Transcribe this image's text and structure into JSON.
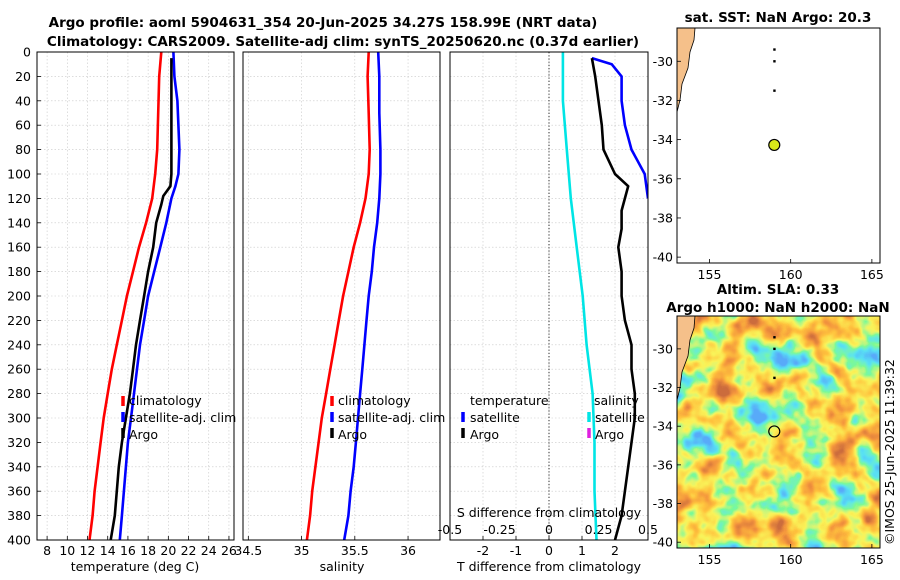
{
  "header": {
    "title_line1": "Argo profile: aoml 5904631_354 20-Jun-2025 34.27S 158.99E (NRT data)",
    "title_line2": "Climatology: CARS2009. Satellite-adj clim: synTS_20250620.nc (0.37d earlier)"
  },
  "watermark": "©IMOS 25-Jun-2025 11:39:32",
  "colors": {
    "clim": "#ff0000",
    "sat": "#0000ff",
    "argo": "#000000",
    "cyan": "#00e5e5",
    "magenta": "#e020e0",
    "land": "#f5c08a"
  },
  "chart_data": [
    {
      "type": "line",
      "id": "temperature",
      "xlabel": "temperature (deg C)",
      "ylim": [
        0,
        400
      ],
      "xlim": [
        7,
        26.5
      ],
      "xticks": [
        "8",
        "10",
        "12",
        "14",
        "16",
        "18",
        "20",
        "22",
        "24",
        "26"
      ],
      "yticks": [
        "0",
        "20",
        "40",
        "60",
        "80",
        "100",
        "120",
        "140",
        "160",
        "180",
        "200",
        "220",
        "240",
        "260",
        "280",
        "300",
        "320",
        "340",
        "360",
        "380",
        "400"
      ],
      "legend": [
        "climatology",
        "satellite-adj. clim",
        "Argo"
      ],
      "series": [
        {
          "name": "climatology",
          "color": "#ff0000",
          "points": [
            [
              19.3,
              0
            ],
            [
              19.1,
              20
            ],
            [
              19.0,
              50
            ],
            [
              18.9,
              80
            ],
            [
              18.7,
              100
            ],
            [
              18.4,
              120
            ],
            [
              17.8,
              140
            ],
            [
              17.1,
              160
            ],
            [
              16.5,
              180
            ],
            [
              15.9,
              200
            ],
            [
              15.4,
              220
            ],
            [
              14.9,
              240
            ],
            [
              14.4,
              260
            ],
            [
              14.0,
              280
            ],
            [
              13.6,
              300
            ],
            [
              13.3,
              320
            ],
            [
              13.0,
              340
            ],
            [
              12.7,
              360
            ],
            [
              12.5,
              380
            ],
            [
              12.2,
              400
            ]
          ]
        },
        {
          "name": "satellite-adj. clim",
          "color": "#0000ff",
          "points": [
            [
              20.5,
              0
            ],
            [
              20.6,
              20
            ],
            [
              20.9,
              40
            ],
            [
              21.0,
              60
            ],
            [
              21.1,
              80
            ],
            [
              21.0,
              100
            ],
            [
              20.7,
              110
            ],
            [
              20.3,
              120
            ],
            [
              19.8,
              140
            ],
            [
              19.2,
              160
            ],
            [
              18.6,
              180
            ],
            [
              18.0,
              200
            ],
            [
              17.6,
              220
            ],
            [
              17.2,
              240
            ],
            [
              16.9,
              260
            ],
            [
              16.6,
              280
            ],
            [
              16.3,
              300
            ],
            [
              16.0,
              320
            ],
            [
              15.8,
              340
            ],
            [
              15.6,
              360
            ],
            [
              15.4,
              380
            ],
            [
              15.2,
              400
            ]
          ]
        },
        {
          "name": "Argo",
          "color": "#000000",
          "points": [
            [
              20.3,
              5
            ],
            [
              20.3,
              20
            ],
            [
              20.3,
              40
            ],
            [
              20.3,
              60
            ],
            [
              20.3,
              80
            ],
            [
              20.3,
              100
            ],
            [
              20.2,
              110
            ],
            [
              19.5,
              118
            ],
            [
              19.3,
              125
            ],
            [
              18.8,
              140
            ],
            [
              18.5,
              160
            ],
            [
              18.0,
              180
            ],
            [
              17.6,
              200
            ],
            [
              17.2,
              220
            ],
            [
              16.8,
              240
            ],
            [
              16.5,
              260
            ],
            [
              16.2,
              280
            ],
            [
              15.8,
              300
            ],
            [
              15.4,
              320
            ],
            [
              15.1,
              340
            ],
            [
              14.9,
              360
            ],
            [
              14.7,
              380
            ],
            [
              14.3,
              400
            ]
          ]
        }
      ]
    },
    {
      "type": "line",
      "id": "salinity",
      "xlabel": "salinity",
      "ylim": [
        0,
        400
      ],
      "xlim": [
        34.45,
        36.3
      ],
      "xticks": [
        "34.5",
        "35",
        "35.5",
        "36"
      ],
      "legend": [
        "climatology",
        "satellite-adj. clim",
        "Argo"
      ],
      "series": [
        {
          "name": "climatology",
          "color": "#ff0000",
          "points": [
            [
              35.63,
              0
            ],
            [
              35.62,
              20
            ],
            [
              35.63,
              50
            ],
            [
              35.64,
              80
            ],
            [
              35.63,
              100
            ],
            [
              35.6,
              120
            ],
            [
              35.55,
              140
            ],
            [
              35.49,
              160
            ],
            [
              35.44,
              180
            ],
            [
              35.39,
              200
            ],
            [
              35.35,
              220
            ],
            [
              35.31,
              240
            ],
            [
              35.27,
              260
            ],
            [
              35.23,
              280
            ],
            [
              35.19,
              300
            ],
            [
              35.16,
              320
            ],
            [
              35.13,
              340
            ],
            [
              35.1,
              360
            ],
            [
              35.08,
              380
            ],
            [
              35.05,
              400
            ]
          ]
        },
        {
          "name": "satellite-adj. clim",
          "color": "#0000ff",
          "points": [
            [
              35.72,
              0
            ],
            [
              35.73,
              20
            ],
            [
              35.73,
              50
            ],
            [
              35.74,
              80
            ],
            [
              35.74,
              100
            ],
            [
              35.73,
              120
            ],
            [
              35.71,
              140
            ],
            [
              35.68,
              160
            ],
            [
              35.66,
              180
            ],
            [
              35.63,
              200
            ],
            [
              35.61,
              220
            ],
            [
              35.59,
              240
            ],
            [
              35.57,
              260
            ],
            [
              35.55,
              280
            ],
            [
              35.53,
              300
            ],
            [
              35.51,
              320
            ],
            [
              35.49,
              340
            ],
            [
              35.46,
              360
            ],
            [
              35.44,
              380
            ],
            [
              35.4,
              400
            ]
          ]
        }
      ]
    },
    {
      "type": "line",
      "id": "difference",
      "xlabel": "T difference from climatology",
      "top_xlabel": "S difference from climatology",
      "xlim": [
        -3.0,
        3.0
      ],
      "ylim": [
        0,
        400
      ],
      "xticks": [
        "-2",
        "-1",
        "0",
        "1",
        "2"
      ],
      "top_xticks": [
        "-0.5",
        "-0.25",
        "0",
        "0.25",
        "0.5"
      ],
      "legend_left_title": "temperature",
      "legend_left": [
        "satellite",
        "Argo"
      ],
      "legend_right_title": "salinity",
      "legend_right": [
        "satellite",
        "Argo"
      ],
      "series": [
        {
          "name": "T satellite",
          "color": "#0000ff",
          "points": [
            [
              1.3,
              5
            ],
            [
              1.9,
              10
            ],
            [
              2.2,
              20
            ],
            [
              2.2,
              40
            ],
            [
              2.3,
              60
            ],
            [
              2.5,
              80
            ],
            [
              2.9,
              100
            ],
            [
              3.0,
              120
            ]
          ]
        },
        {
          "name": "T Argo",
          "color": "#000000",
          "points": [
            [
              1.3,
              5
            ],
            [
              1.4,
              20
            ],
            [
              1.5,
              40
            ],
            [
              1.6,
              60
            ],
            [
              1.65,
              80
            ],
            [
              2.0,
              100
            ],
            [
              2.4,
              110
            ],
            [
              2.3,
              120
            ],
            [
              2.2,
              130
            ],
            [
              2.2,
              145
            ],
            [
              2.1,
              160
            ],
            [
              2.2,
              180
            ],
            [
              2.2,
              200
            ],
            [
              2.3,
              220
            ],
            [
              2.5,
              240
            ],
            [
              2.5,
              260
            ],
            [
              2.6,
              280
            ],
            [
              2.6,
              300
            ],
            [
              2.5,
              320
            ],
            [
              2.4,
              340
            ],
            [
              2.3,
              360
            ],
            [
              2.2,
              380
            ],
            [
              2.0,
              400
            ]
          ]
        },
        {
          "name": "S satellite",
          "color": "#00e5e5",
          "points": [
            [
              0.07,
              0
            ],
            [
              0.07,
              40
            ],
            [
              0.09,
              80
            ],
            [
              0.11,
              120
            ],
            [
              0.14,
              160
            ],
            [
              0.17,
              200
            ],
            [
              0.19,
              240
            ],
            [
              0.22,
              280
            ],
            [
              0.23,
              320
            ],
            [
              0.23,
              360
            ],
            [
              0.24,
              400
            ]
          ]
        }
      ]
    },
    {
      "type": "scatter",
      "id": "sst_map",
      "title": "sat. SST: NaN Argo: 20.3",
      "xlim": [
        153,
        165.5
      ],
      "ylim": [
        -40.3,
        -28.3
      ],
      "xticks": [
        "155",
        "160",
        "165"
      ],
      "yticks": [
        "-30",
        "-32",
        "-34",
        "-36",
        "-38",
        "-40"
      ],
      "points": [
        [
          159.0,
          -29.4
        ],
        [
          159.0,
          -30.0
        ],
        [
          159.0,
          -31.5
        ]
      ],
      "current": [
        158.99,
        -34.27
      ]
    },
    {
      "type": "heatmap",
      "id": "sla_map",
      "title_line1": "Altim. SLA: 0.33",
      "title_line2": "Argo h1000: NaN h2000: NaN",
      "xlim": [
        153,
        165.5
      ],
      "ylim": [
        -40.3,
        -28.3
      ],
      "xticks": [
        "155",
        "160",
        "165"
      ],
      "yticks": [
        "-30",
        "-32",
        "-34",
        "-36",
        "-38",
        "-40"
      ],
      "points": [
        [
          159.0,
          -29.4
        ],
        [
          159.0,
          -30.0
        ],
        [
          159.0,
          -31.5
        ]
      ],
      "current": [
        158.99,
        -34.27
      ]
    }
  ]
}
